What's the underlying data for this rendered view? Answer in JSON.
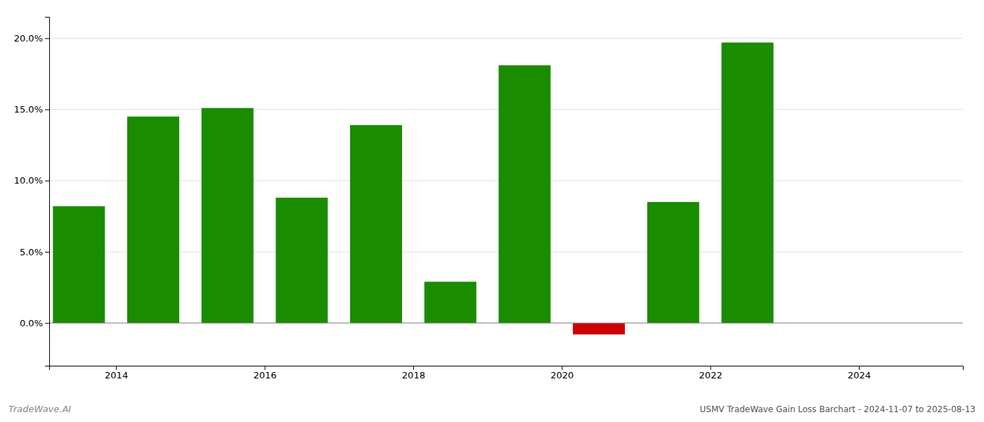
{
  "chart_data": {
    "type": "bar",
    "title": "USMV TradeWave Gain Loss Barchart - 2024-11-07 to 2025-08-13",
    "annotations": [
      "TradeWave.AI"
    ],
    "x": [
      2013,
      2014,
      2015,
      2016,
      2017,
      2018,
      2019,
      2020,
      2021,
      2022,
      2023,
      2024
    ],
    "values": [
      0.082,
      0.145,
      0.151,
      0.088,
      0.139,
      0.029,
      0.181,
      -0.008,
      0.085,
      0.197,
      0.0,
      0.0
    ],
    "colors": [
      "#1a8c00",
      "#1a8c00",
      "#1a8c00",
      "#1a8c00",
      "#1a8c00",
      "#1a8c00",
      "#1a8c00",
      "#cc0000",
      "#1a8c00",
      "#1a8c00",
      null,
      null
    ],
    "xlim": [
      2012.6,
      2024.9
    ],
    "xticks": [
      {
        "value": 2013.5,
        "label": "2014"
      },
      {
        "value": 2015.5,
        "label": "2016"
      },
      {
        "value": 2017.5,
        "label": "2018"
      },
      {
        "value": 2019.5,
        "label": "2020"
      },
      {
        "value": 2021.5,
        "label": "2022"
      },
      {
        "value": 2023.5,
        "label": "2024"
      }
    ],
    "ylim": [
      -0.03,
      0.215
    ],
    "yticks": [
      {
        "value": 0.0,
        "label": "0.0%"
      },
      {
        "value": 0.05,
        "label": "5.0%"
      },
      {
        "value": 0.1,
        "label": "10.0%"
      },
      {
        "value": 0.15,
        "label": "15.0%"
      },
      {
        "value": 0.2,
        "label": "20.0%"
      }
    ],
    "grid": true
  }
}
